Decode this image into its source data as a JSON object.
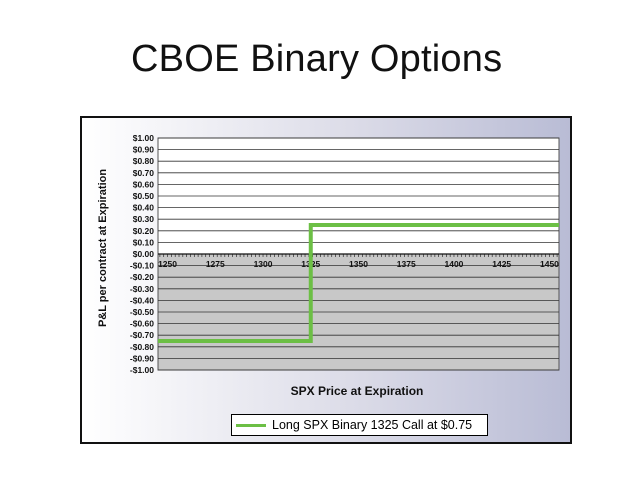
{
  "slide": {
    "title": "CBOE Binary Options"
  },
  "chart_data": {
    "type": "line",
    "xlabel": "SPX Price at Expiration",
    "ylabel": "P&L per contract at Expiration",
    "xlim": [
      1245,
      1455
    ],
    "ylim": [
      -1.0,
      1.0
    ],
    "x_ticks": [
      1250,
      1275,
      1300,
      1325,
      1350,
      1375,
      1400,
      1425,
      1450
    ],
    "y_ticks": [
      "$1.00",
      "$0.90",
      "$0.80",
      "$0.70",
      "$0.60",
      "$0.50",
      "$0.40",
      "$0.30",
      "$0.20",
      "$0.10",
      "$0.00",
      "-$0.10",
      "-$0.20",
      "-$0.30",
      "-$0.40",
      "-$0.50",
      "-$0.60",
      "-$0.70",
      "-$0.80",
      "-$0.90",
      "-$1.00"
    ],
    "grid": true,
    "legend_position": "bottom",
    "series": [
      {
        "name": "Long SPX Binary 1325 Call at $0.75",
        "color": "#6cbf45",
        "x": [
          1245,
          1325,
          1325,
          1455
        ],
        "values": [
          -0.75,
          -0.75,
          0.25,
          0.25
        ]
      }
    ]
  }
}
